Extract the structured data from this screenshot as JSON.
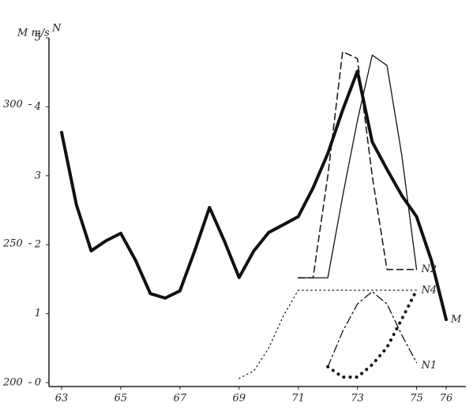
{
  "chart_data": {
    "type": "line",
    "y_label": "M m/s",
    "y2_label": "N",
    "x": [
      63,
      63.5,
      64,
      64.5,
      65,
      65.5,
      66,
      66.5,
      67,
      67.5,
      68,
      68.5,
      69,
      69.5,
      70,
      70.5,
      71,
      71.5,
      72,
      72.5,
      73,
      73.5,
      74,
      74.5,
      75,
      75.5,
      76
    ],
    "xlim": [
      63,
      76
    ],
    "xticks": [
      63,
      65,
      67,
      69,
      71,
      73,
      75,
      76
    ],
    "ylim": [
      200,
      324
    ],
    "yticks": [
      200,
      250,
      300
    ],
    "y2lim": [
      0,
      5
    ],
    "y2ticks": [
      0,
      1,
      2,
      3,
      4,
      5
    ],
    "series": [
      {
        "name": "M",
        "color": "#111111",
        "line_style": "solid",
        "line_width": 4,
        "values": [
          290,
          264,
          247.4,
          251,
          253.7,
          244,
          232,
          230.4,
          233,
          247.4,
          263,
          251,
          237.8,
          247.4,
          254,
          256.8,
          259.7,
          270,
          282.4,
          298,
          312,
          286.6,
          276.7,
          267.3,
          259.7,
          244,
          222.7
        ]
      },
      {
        "name": "N2",
        "color": "#111111",
        "line_style": "dashed",
        "line_width": 1.5,
        "axis": "y2",
        "values": [
          null,
          null,
          null,
          null,
          null,
          null,
          null,
          null,
          null,
          null,
          null,
          null,
          null,
          null,
          null,
          null,
          1.52,
          1.52,
          3.0,
          4.8,
          4.7,
          3.0,
          1.64,
          1.64,
          1.64,
          null,
          null
        ]
      },
      {
        "color": "#111111",
        "line_style": "solid",
        "line_width": 1.3,
        "axis": "y2",
        "values": [
          null,
          null,
          null,
          null,
          null,
          null,
          null,
          null,
          null,
          null,
          null,
          null,
          null,
          null,
          null,
          null,
          1.52,
          1.52,
          1.52,
          2.7,
          3.8,
          4.75,
          4.6,
          3.3,
          1.64,
          null,
          null
        ]
      },
      {
        "color": "#111111",
        "line_style": "dotted",
        "line_width": 1.2,
        "axis": "y2",
        "values": [
          null,
          null,
          null,
          null,
          null,
          null,
          null,
          null,
          null,
          null,
          null,
          null,
          0.06,
          0.17,
          0.5,
          0.97,
          1.34,
          1.34,
          1.34,
          1.34,
          1.34,
          1.34,
          1.34,
          1.34,
          1.34,
          null,
          null
        ]
      },
      {
        "name": "N4",
        "color": "#111111",
        "line_style": "heavy-dotted",
        "line_width": 4,
        "axis": "y2",
        "values": [
          null,
          null,
          null,
          null,
          null,
          null,
          null,
          null,
          null,
          null,
          null,
          null,
          null,
          null,
          null,
          null,
          null,
          null,
          0.23,
          0.08,
          0.08,
          0.26,
          0.51,
          0.92,
          1.34,
          null,
          null
        ]
      },
      {
        "name": "N1",
        "color": "#111111",
        "line_style": "dash-dot",
        "line_width": 1.3,
        "axis": "y2",
        "values": [
          null,
          null,
          null,
          null,
          null,
          null,
          null,
          null,
          null,
          null,
          null,
          null,
          null,
          null,
          null,
          null,
          null,
          null,
          0.23,
          0.74,
          1.14,
          1.32,
          1.14,
          0.69,
          0.29,
          null,
          null
        ]
      }
    ]
  }
}
